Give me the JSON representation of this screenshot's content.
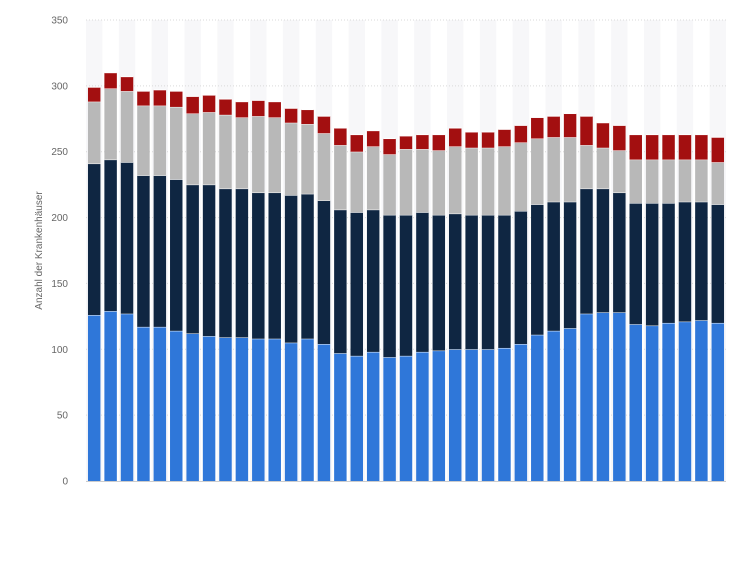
{
  "chart_data": {
    "type": "bar",
    "stacked": true,
    "ylabel": "Anzahl der Krankenhäuser",
    "ylim": [
      0,
      350
    ],
    "yticks": [
      0,
      50,
      100,
      150,
      200,
      250,
      300,
      350
    ],
    "grid": true,
    "series": [
      {
        "color": "#2f77d9",
        "values": [
          126,
          129,
          127,
          117,
          117,
          114,
          112,
          110,
          109,
          109,
          108,
          108,
          105,
          108,
          104,
          97,
          95,
          98,
          94,
          95,
          98,
          99,
          100,
          100,
          100,
          101,
          104,
          111,
          114,
          116,
          127,
          128,
          128,
          119,
          118,
          120,
          121,
          122,
          120
        ]
      },
      {
        "color": "#0f2642",
        "values": [
          115,
          115,
          115,
          115,
          115,
          115,
          113,
          115,
          113,
          113,
          111,
          111,
          112,
          110,
          109,
          109,
          109,
          108,
          108,
          107,
          106,
          103,
          103,
          102,
          102,
          101,
          101,
          99,
          98,
          96,
          95,
          94,
          91,
          92,
          93,
          91,
          91,
          90,
          90
        ]
      },
      {
        "color": "#b8b8b8",
        "values": [
          47,
          54,
          54,
          53,
          53,
          55,
          54,
          55,
          56,
          54,
          58,
          57,
          55,
          53,
          51,
          49,
          46,
          48,
          46,
          50,
          48,
          49,
          51,
          51,
          51,
          52,
          52,
          50,
          49,
          49,
          33,
          31,
          32,
          33,
          33,
          33,
          32,
          32,
          32
        ]
      },
      {
        "color": "#a30f10",
        "values": [
          11,
          12,
          11,
          11,
          12,
          12,
          13,
          13,
          12,
          12,
          12,
          12,
          11,
          11,
          13,
          13,
          13,
          12,
          12,
          10,
          11,
          12,
          14,
          12,
          12,
          13,
          13,
          16,
          16,
          18,
          22,
          19,
          19,
          19,
          19,
          19,
          19,
          19,
          19
        ]
      }
    ]
  }
}
